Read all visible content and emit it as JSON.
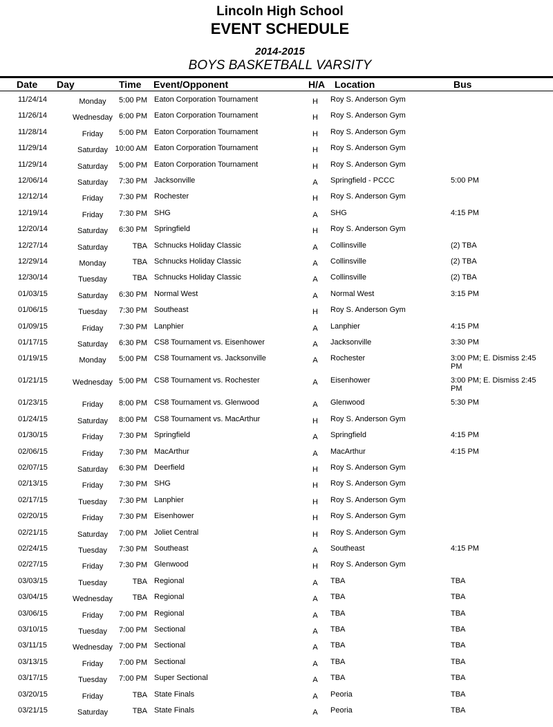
{
  "header": {
    "school": "Lincoln High School",
    "title": "EVENT SCHEDULE",
    "season": "2014-2015",
    "team": "BOYS BASKETBALL VARSITY"
  },
  "columns": {
    "date": "Date",
    "day": "Day",
    "time": "Time",
    "event": "Event/Opponent",
    "ha": "H/A",
    "location": "Location",
    "bus": "Bus"
  },
  "rows": [
    [
      "11/24/14",
      "Monday",
      "5:00 PM",
      "Eaton Corporation Tournament",
      "H",
      "Roy S. Anderson Gym",
      ""
    ],
    [
      "11/26/14",
      "Wednesday",
      "6:00 PM",
      "Eaton Corporation Tournament",
      "H",
      "Roy S. Anderson Gym",
      ""
    ],
    [
      "11/28/14",
      "Friday",
      "5:00 PM",
      "Eaton Corporation Tournament",
      "H",
      "Roy S. Anderson Gym",
      ""
    ],
    [
      "11/29/14",
      "Saturday",
      "10:00 AM",
      "Eaton Corporation Tournament",
      "H",
      "Roy S. Anderson Gym",
      ""
    ],
    [
      "11/29/14",
      "Saturday",
      "5:00 PM",
      "Eaton Corporation Tournament",
      "H",
      "Roy S. Anderson Gym",
      ""
    ],
    [
      "12/06/14",
      "Saturday",
      "7:30 PM",
      "Jacksonville",
      "A",
      "Springfield - PCCC",
      "5:00 PM"
    ],
    [
      "12/12/14",
      "Friday",
      "7:30 PM",
      "Rochester",
      "H",
      "Roy S. Anderson Gym",
      ""
    ],
    [
      "12/19/14",
      "Friday",
      "7:30 PM",
      "SHG",
      "A",
      "SHG",
      "4:15 PM"
    ],
    [
      "12/20/14",
      "Saturday",
      "6:30 PM",
      "Springfield",
      "H",
      "Roy S. Anderson Gym",
      ""
    ],
    [
      "12/27/14",
      "Saturday",
      "TBA",
      "Schnucks Holiday Classic",
      "A",
      "Collinsville",
      "(2)  TBA"
    ],
    [
      "12/29/14",
      "Monday",
      "TBA",
      "Schnucks Holiday Classic",
      "A",
      "Collinsville",
      "(2)  TBA"
    ],
    [
      "12/30/14",
      "Tuesday",
      "TBA",
      "Schnucks Holiday Classic",
      "A",
      "Collinsville",
      "(2)  TBA"
    ],
    [
      "01/03/15",
      "Saturday",
      "6:30 PM",
      "Normal West",
      "A",
      "Normal West",
      "3:15 PM"
    ],
    [
      "01/06/15",
      "Tuesday",
      "7:30 PM",
      "Southeast",
      "H",
      "Roy S. Anderson Gym",
      ""
    ],
    [
      "01/09/15",
      "Friday",
      "7:30 PM",
      "Lanphier",
      "A",
      "Lanphier",
      "4:15 PM"
    ],
    [
      "01/17/15",
      "Saturday",
      "6:30 PM",
      "CS8 Tournament vs. Eisenhower",
      "A",
      "Jacksonville",
      "3:30 PM"
    ],
    [
      "01/19/15",
      "Monday",
      "5:00 PM",
      "CS8 Tournament vs. Jacksonville",
      "A",
      "Rochester",
      "3:00 PM; E. Dismiss 2:45 PM"
    ],
    [
      "01/21/15",
      "Wednesday",
      "5:00 PM",
      "CS8 Tournament vs. Rochester",
      "A",
      "Eisenhower",
      "3:00 PM; E. Dismiss 2:45 PM"
    ],
    [
      "01/23/15",
      "Friday",
      "8:00 PM",
      "CS8 Tournament vs. Glenwood",
      "A",
      "Glenwood",
      "5:30 PM"
    ],
    [
      "01/24/15",
      "Saturday",
      "8:00 PM",
      "CS8 Tournament vs. MacArthur",
      "H",
      "Roy S. Anderson Gym",
      ""
    ],
    [
      "01/30/15",
      "Friday",
      "7:30 PM",
      "Springfield",
      "A",
      "Springfield",
      "4:15 PM"
    ],
    [
      "02/06/15",
      "Friday",
      "7:30 PM",
      "MacArthur",
      "A",
      "MacArthur",
      "4:15 PM"
    ],
    [
      "02/07/15",
      "Saturday",
      "6:30 PM",
      "Deerfield",
      "H",
      "Roy S. Anderson Gym",
      ""
    ],
    [
      "02/13/15",
      "Friday",
      "7:30 PM",
      "SHG",
      "H",
      "Roy S. Anderson Gym",
      ""
    ],
    [
      "02/17/15",
      "Tuesday",
      "7:30 PM",
      "Lanphier",
      "H",
      "Roy S. Anderson Gym",
      ""
    ],
    [
      "02/20/15",
      "Friday",
      "7:30 PM",
      "Eisenhower",
      "H",
      "Roy S. Anderson Gym",
      ""
    ],
    [
      "02/21/15",
      "Saturday",
      "7:00 PM",
      "Joliet Central",
      "H",
      "Roy S. Anderson Gym",
      ""
    ],
    [
      "02/24/15",
      "Tuesday",
      "7:30 PM",
      "Southeast",
      "A",
      "Southeast",
      "4:15 PM"
    ],
    [
      "02/27/15",
      "Friday",
      "7:30 PM",
      "Glenwood",
      "H",
      "Roy S. Anderson Gym",
      ""
    ],
    [
      "03/03/15",
      "Tuesday",
      "TBA",
      "Regional",
      "A",
      "TBA",
      "TBA"
    ],
    [
      "03/04/15",
      "Wednesday",
      "TBA",
      "Regional",
      "A",
      "TBA",
      "TBA"
    ],
    [
      "03/06/15",
      "Friday",
      "7:00 PM",
      "Regional",
      "A",
      "TBA",
      "TBA"
    ],
    [
      "03/10/15",
      "Tuesday",
      "7:00 PM",
      "Sectional",
      "A",
      "TBA",
      "TBA"
    ],
    [
      "03/11/15",
      "Wednesday",
      "7:00 PM",
      "Sectional",
      "A",
      "TBA",
      "TBA"
    ],
    [
      "03/13/15",
      "Friday",
      "7:00 PM",
      "Sectional",
      "A",
      "TBA",
      "TBA"
    ],
    [
      "03/17/15",
      "Tuesday",
      "7:00 PM",
      "Super Sectional",
      "A",
      "TBA",
      "TBA"
    ],
    [
      "03/20/15",
      "Friday",
      "TBA",
      "State Finals",
      "A",
      "Peoria",
      "TBA"
    ],
    [
      "03/21/15",
      "Saturday",
      "TBA",
      "State Finals",
      "A",
      "Peoria",
      "TBA"
    ]
  ]
}
